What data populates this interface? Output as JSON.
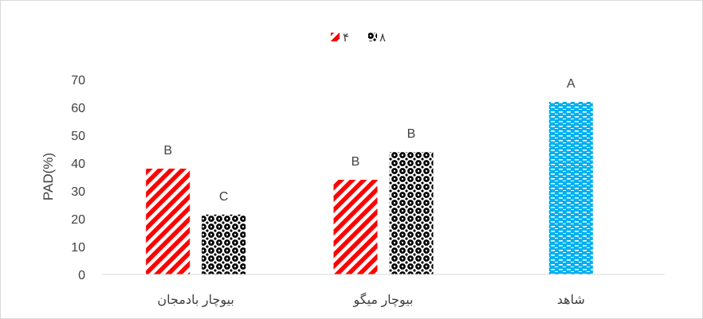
{
  "chart_data": {
    "type": "bar",
    "categories": [
      "بیوچار بادمجان",
      "بیوچار میگو",
      "شاهد"
    ],
    "series": [
      {
        "name": "۴",
        "values": [
          38,
          34,
          62
        ],
        "labels": [
          "B",
          "B",
          "A"
        ],
        "pattern": "stripes",
        "color": "#ff0000"
      },
      {
        "name": "۸",
        "values": [
          21.5,
          44,
          null
        ],
        "labels": [
          "C",
          "B",
          ""
        ],
        "pattern": "dots",
        "color": "#000000"
      }
    ],
    "control_pattern": "dashes",
    "control_color": "#00b0f0",
    "ylabel": "PAD(%)",
    "xlabel": "",
    "ylim": [
      0,
      70
    ],
    "yticks": [
      0,
      10,
      20,
      30,
      40,
      50,
      60,
      70
    ],
    "legend_position": "top-center",
    "grid": false
  }
}
